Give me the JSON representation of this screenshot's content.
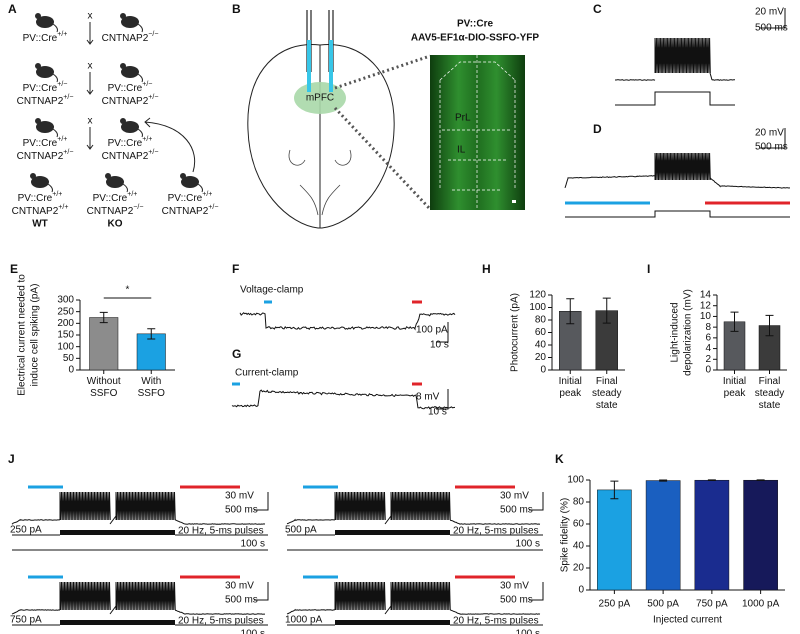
{
  "chart_data": [
    {
      "type": "bar",
      "panel": "E",
      "ylabel": [
        "Electrical current needed to",
        "induce cell spiking (pA)"
      ],
      "categories": [
        "Without SSFO",
        "With SSFO"
      ],
      "values": [
        225,
        155
      ],
      "errors": [
        22,
        22
      ],
      "colors": [
        "#8c8c8c",
        "#1ba1e2"
      ],
      "ylim": [
        0,
        300
      ],
      "yticks": [
        0,
        50,
        100,
        150,
        200,
        250,
        300
      ],
      "annotation": "*"
    },
    {
      "type": "bar",
      "panel": "H",
      "ylabel": [
        "Photocurrent (pA)"
      ],
      "categories": [
        "Initial peak",
        "Final steady state"
      ],
      "values": [
        94,
        95
      ],
      "errors": [
        20,
        20
      ],
      "colors": [
        "#57595d",
        "#3b3b3b"
      ],
      "ylim": [
        0,
        120
      ],
      "yticks": [
        0,
        20,
        40,
        60,
        80,
        100,
        120
      ]
    },
    {
      "type": "bar",
      "panel": "I",
      "ylabel": [
        "Light-induced",
        "depolarization (mV)"
      ],
      "categories": [
        "Initial peak",
        "Final steady state"
      ],
      "values": [
        9,
        8.3
      ],
      "errors": [
        1.8,
        1.9
      ],
      "colors": [
        "#57595d",
        "#3b3b3b"
      ],
      "ylim": [
        0,
        14
      ],
      "yticks": [
        0,
        2,
        4,
        6,
        8,
        10,
        12,
        14
      ]
    },
    {
      "type": "bar",
      "panel": "K",
      "ylabel": [
        "Spike fidelity (%)"
      ],
      "xlabel": "Injected current",
      "categories": [
        "250 pA",
        "500 pA",
        "750 pA",
        "1000 pA"
      ],
      "values": [
        91,
        99.5,
        99.8,
        99.8
      ],
      "errors": [
        8,
        0.5,
        0.3,
        0.3
      ],
      "colors": [
        "#1ba1e2",
        "#1a5fc0",
        "#1a2c8f",
        "#16195a"
      ],
      "ylim": [
        0,
        100
      ],
      "yticks": [
        0,
        20,
        40,
        60,
        80,
        100
      ]
    }
  ],
  "panels": {
    "A": {
      "panel": "A",
      "crosses": [
        "x",
        "x",
        "x"
      ],
      "mice": [
        {
          "lines": [
            {
              "base": "PV::Cre",
              "sup": "+/+"
            }
          ]
        },
        {
          "lines": [
            {
              "base": "CNTNAP2",
              "sup": "−/−"
            }
          ]
        },
        {
          "lines": [
            {
              "base": "PV::Cre",
              "sup": "+/−"
            },
            {
              "base": "CNTNAP2",
              "sup": "+/−"
            }
          ]
        },
        {
          "lines": [
            {
              "base": "PV::Cre",
              "sup": "+/−"
            },
            {
              "base": "CNTNAP2",
              "sup": "+/−"
            }
          ]
        },
        {
          "lines": [
            {
              "base": "PV::Cre",
              "sup": "+/+"
            },
            {
              "base": "CNTNAP2",
              "sup": "+/−"
            }
          ]
        },
        {
          "lines": [
            {
              "base": "PV::Cre",
              "sup": "+/+"
            },
            {
              "base": "CNTNAP2",
              "sup": "+/−"
            }
          ]
        },
        {
          "lines": [
            {
              "base": "PV::Cre",
              "sup": "+/+"
            },
            {
              "base": "CNTNAP2",
              "sup": "+/+"
            }
          ]
        },
        {
          "lines": [
            {
              "base": "PV::Cre",
              "sup": "+/+"
            },
            {
              "base": "CNTNAP2",
              "sup": "−/−"
            }
          ]
        },
        {
          "lines": [
            {
              "base": "PV::Cre",
              "sup": "+/+"
            },
            {
              "base": "CNTNAP2",
              "sup": "+/−"
            }
          ]
        }
      ],
      "groups": [
        "WT",
        "KO"
      ]
    },
    "B": {
      "panel": "B",
      "line": "PV::Cre",
      "virus": "AAV5-EF1α-DIO-SSFO-YFP",
      "region": "mPFC",
      "subregions": [
        "PrL",
        "IL"
      ]
    },
    "C": {
      "panel": "C",
      "scale_y": "20 mV",
      "scale_x": "500 ms"
    },
    "D": {
      "panel": "D",
      "scale_y": "20 mV",
      "scale_x": "500 ms"
    },
    "F": {
      "panel": "F",
      "title": "Voltage-clamp",
      "scale_y": "100 pA",
      "scale_x": "10 s"
    },
    "G": {
      "panel": "G",
      "title": "Current-clamp",
      "scale_y": "8 mV",
      "scale_x": "10 s"
    },
    "J": {
      "panel": "J",
      "traces": [
        {
          "current": "250 pA",
          "scale_y": "30 mV",
          "scale_x": "500 ms",
          "pulses": "20 Hz, 5-ms pulses",
          "duration": "100 s"
        },
        {
          "current": "500 pA",
          "scale_y": "30 mV",
          "scale_x": "500 ms",
          "pulses": "20 Hz, 5-ms pulses",
          "duration": "100 s"
        },
        {
          "current": "750 pA",
          "scale_y": "30 mV",
          "scale_x": "500 ms",
          "pulses": "20 Hz, 5-ms pulses",
          "duration": "100 s"
        },
        {
          "current": "1000 pA",
          "scale_y": "30 mV",
          "scale_x": "500 ms",
          "pulses": "20 Hz, 5-ms pulses",
          "duration": "100 s"
        }
      ]
    }
  }
}
